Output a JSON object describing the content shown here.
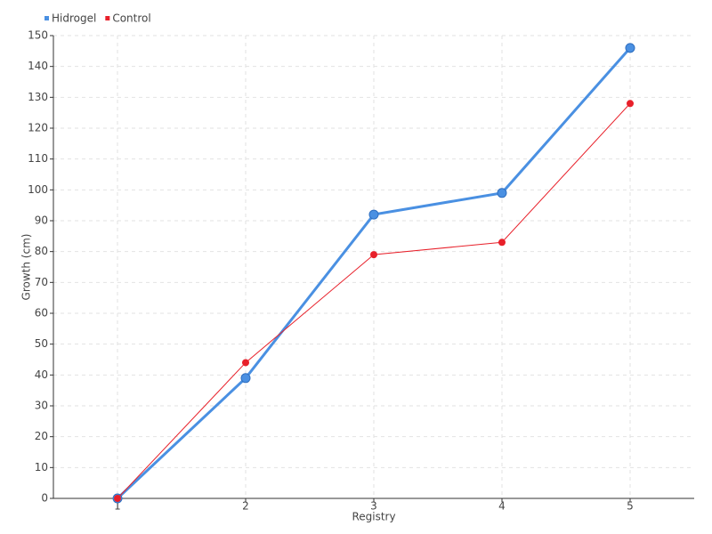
{
  "chart_data": {
    "type": "line",
    "x_label": "Registry",
    "y_label": "Growth (cm)",
    "categories": [
      "1",
      "2",
      "3",
      "4",
      "5"
    ],
    "series": [
      {
        "name": "Hidrogel",
        "color": "#4a90e2",
        "values": [
          0,
          39,
          92,
          99,
          146
        ]
      },
      {
        "name": "Control",
        "color": "#e8202a",
        "values": [
          0,
          44,
          79,
          83,
          128
        ]
      }
    ],
    "ylim": [
      0,
      150
    ],
    "yticks": [
      0,
      10,
      20,
      30,
      40,
      50,
      60,
      70,
      80,
      90,
      100,
      110,
      120,
      130,
      140,
      150
    ],
    "grid": true,
    "legend": "top-left"
  }
}
